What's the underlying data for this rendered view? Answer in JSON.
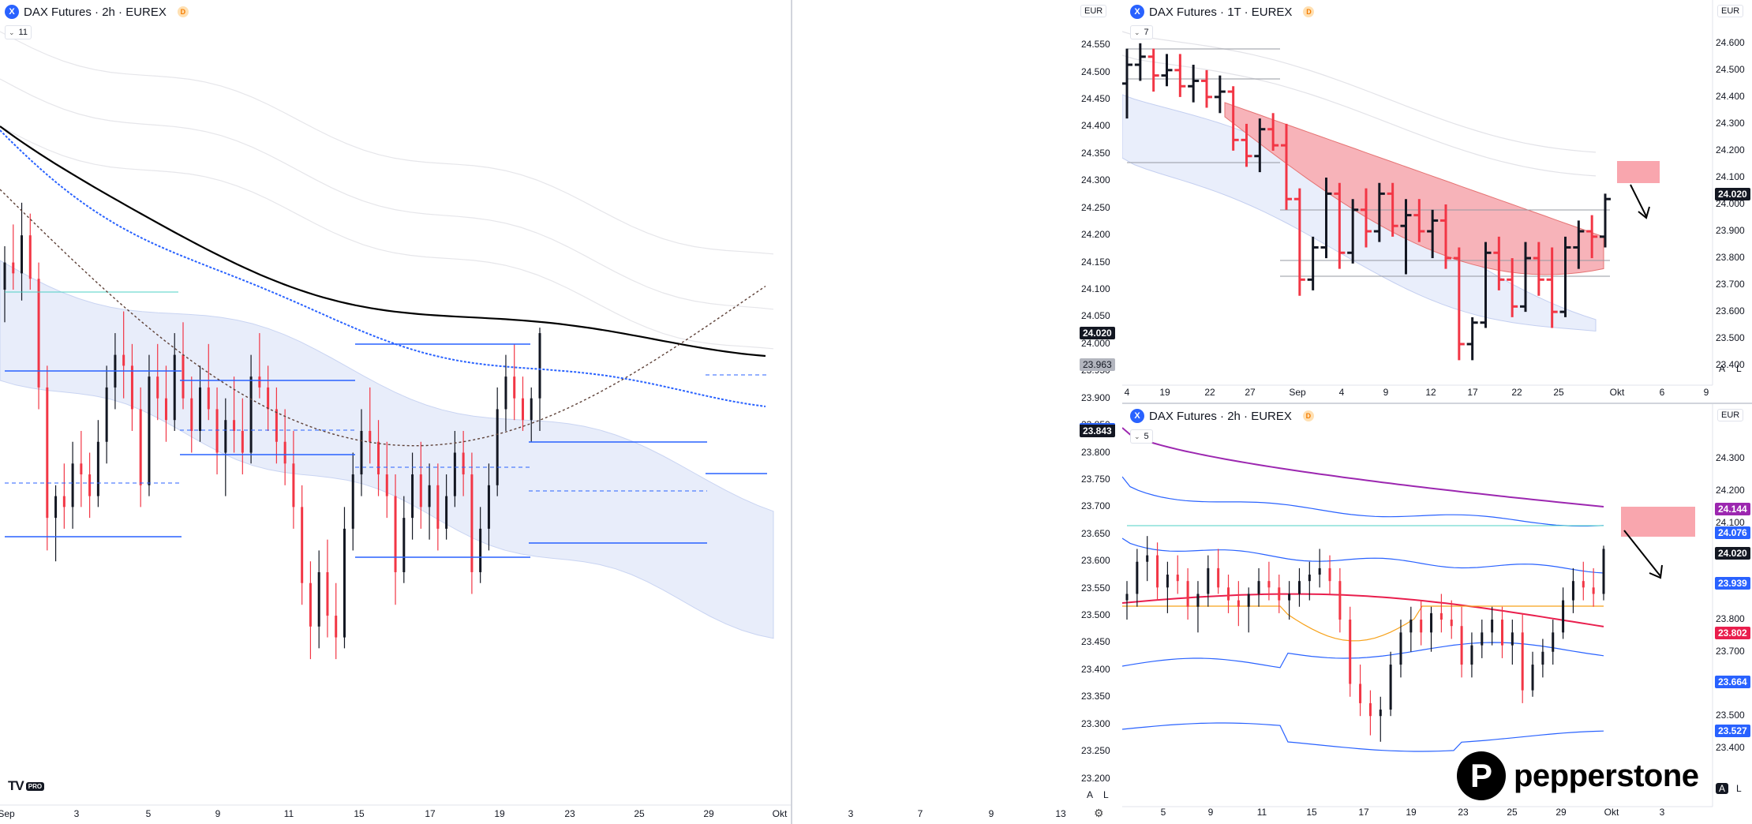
{
  "panels": {
    "left": {
      "title": "DAX Futures · 2h · EUREX",
      "badge": "D",
      "indicator_count": "11",
      "currency": "EUR",
      "last_price": "24.020",
      "tag_2": "23.963",
      "tag_3": "23.843",
      "al_a": "A",
      "al_l": "L"
    },
    "topright": {
      "title": "DAX Futures · 1T · EUREX",
      "badge": "D",
      "indicator_count": "7",
      "currency": "EUR",
      "last_price": "24.020",
      "al_a": "A",
      "al_l": "L"
    },
    "bottomright": {
      "title": "DAX Futures · 2h · EUREX",
      "badge": "D",
      "indicator_count": "5",
      "currency": "EUR",
      "last_price": "24.020",
      "tags": [
        "24.144",
        "24.076",
        "23.939",
        "23.802",
        "23.664",
        "23.527"
      ],
      "al_a": "A",
      "al_l": "L"
    }
  },
  "branding": {
    "tv": "TV",
    "tv_pro": "PRO",
    "pepperstone": "pepperstone",
    "pep_mark": "P"
  },
  "colors": {
    "up": "#131722",
    "down": "#f23645",
    "blue": "#2962ff",
    "dotted_blue": "#2962ff",
    "cloud": "#e8edfa",
    "red_band": "#f7b3b9",
    "pink_box": "#f9a6ae",
    "orange_box": "#fde2bd",
    "purple": "#9c27b0",
    "teal": "#4dd0c4",
    "orange_line": "#f7a21b",
    "crimson": "#e91e4d"
  },
  "chart_data": [
    {
      "id": "left",
      "type": "candlestick",
      "title": "DAX Futures · 2h · EUREX",
      "y_ticks": [
        "24.550",
        "24.500",
        "24.450",
        "24.400",
        "24.350",
        "24.300",
        "24.250",
        "24.200",
        "24.150",
        "24.100",
        "24.050",
        "24.000",
        "23.950",
        "23.900",
        "23.850",
        "23.800",
        "23.750",
        "23.700",
        "23.650",
        "23.600",
        "23.550",
        "23.500",
        "23.450",
        "23.400",
        "23.350",
        "23.300",
        "23.250",
        "23.200"
      ],
      "ylim": [
        23.195,
        24.575
      ],
      "x_ticks": [
        "Sep",
        "3",
        "5",
        "9",
        "11",
        "15",
        "17",
        "19",
        "23",
        "25",
        "29",
        "Okt",
        "3",
        "7",
        "9",
        "13"
      ],
      "last_price": 24.02,
      "ohlc": [
        [
          24.1,
          24.18,
          24.04,
          24.15
        ],
        [
          24.15,
          24.22,
          24.1,
          24.13
        ],
        [
          24.13,
          24.26,
          24.08,
          24.2
        ],
        [
          24.2,
          24.24,
          24.1,
          24.12
        ],
        [
          24.12,
          24.15,
          23.88,
          23.92
        ],
        [
          23.92,
          23.96,
          23.62,
          23.68
        ],
        [
          23.68,
          23.74,
          23.6,
          23.72
        ],
        [
          23.72,
          23.78,
          23.66,
          23.7
        ],
        [
          23.7,
          23.82,
          23.66,
          23.78
        ],
        [
          23.78,
          23.84,
          23.7,
          23.76
        ],
        [
          23.76,
          23.8,
          23.68,
          23.72
        ],
        [
          23.72,
          23.86,
          23.7,
          23.82
        ],
        [
          23.82,
          23.96,
          23.78,
          23.92
        ],
        [
          23.92,
          24.02,
          23.88,
          23.98
        ],
        [
          23.98,
          24.06,
          23.9,
          23.96
        ],
        [
          23.96,
          24.0,
          23.84,
          23.88
        ],
        [
          23.88,
          23.92,
          23.7,
          23.74
        ],
        [
          23.74,
          23.98,
          23.72,
          23.94
        ],
        [
          23.94,
          24.0,
          23.86,
          23.9
        ],
        [
          23.9,
          23.96,
          23.82,
          23.86
        ],
        [
          23.86,
          24.02,
          23.84,
          23.98
        ],
        [
          23.98,
          24.04,
          23.88,
          23.9
        ],
        [
          23.9,
          23.94,
          23.8,
          23.84
        ],
        [
          23.84,
          23.96,
          23.82,
          23.92
        ],
        [
          23.92,
          24.0,
          23.86,
          23.88
        ],
        [
          23.88,
          23.92,
          23.76,
          23.8
        ],
        [
          23.8,
          23.9,
          23.72,
          23.86
        ],
        [
          23.86,
          23.94,
          23.8,
          23.84
        ],
        [
          23.84,
          23.9,
          23.76,
          23.8
        ],
        [
          23.8,
          23.98,
          23.78,
          23.94
        ],
        [
          23.94,
          24.02,
          23.9,
          23.92
        ],
        [
          23.92,
          23.96,
          23.84,
          23.88
        ],
        [
          23.88,
          23.92,
          23.78,
          23.82
        ],
        [
          23.82,
          23.88,
          23.74,
          23.78
        ],
        [
          23.78,
          23.84,
          23.66,
          23.7
        ],
        [
          23.7,
          23.74,
          23.52,
          23.56
        ],
        [
          23.56,
          23.6,
          23.42,
          23.48
        ],
        [
          23.48,
          23.62,
          23.44,
          23.58
        ],
        [
          23.58,
          23.64,
          23.46,
          23.5
        ],
        [
          23.5,
          23.56,
          23.42,
          23.46
        ],
        [
          23.46,
          23.7,
          23.44,
          23.66
        ],
        [
          23.66,
          23.8,
          23.62,
          23.76
        ],
        [
          23.76,
          23.88,
          23.72,
          23.84
        ],
        [
          23.84,
          23.92,
          23.78,
          23.82
        ],
        [
          23.82,
          23.86,
          23.72,
          23.76
        ],
        [
          23.76,
          23.82,
          23.68,
          23.72
        ],
        [
          23.72,
          23.76,
          23.52,
          23.58
        ],
        [
          23.58,
          23.72,
          23.56,
          23.68
        ],
        [
          23.68,
          23.8,
          23.64,
          23.76
        ],
        [
          23.76,
          23.82,
          23.66,
          23.7
        ],
        [
          23.7,
          23.78,
          23.64,
          23.74
        ],
        [
          23.74,
          23.78,
          23.62,
          23.66
        ],
        [
          23.66,
          23.76,
          23.64,
          23.72
        ],
        [
          23.72,
          23.84,
          23.7,
          23.8
        ],
        [
          23.8,
          23.84,
          23.72,
          23.76
        ],
        [
          23.76,
          23.8,
          23.54,
          23.58
        ],
        [
          23.58,
          23.7,
          23.56,
          23.66
        ],
        [
          23.66,
          23.78,
          23.62,
          23.74
        ],
        [
          23.74,
          23.92,
          23.72,
          23.88
        ],
        [
          23.88,
          23.98,
          23.84,
          23.94
        ],
        [
          23.94,
          24.0,
          23.86,
          23.9
        ],
        [
          23.9,
          23.94,
          23.84,
          23.86
        ],
        [
          23.86,
          23.92,
          23.82,
          23.9
        ],
        [
          23.9,
          24.03,
          23.84,
          24.02
        ]
      ],
      "bands_note": "deviation channels, cloud and moving averages drawn as overlays",
      "zones": [
        {
          "type": "resistance",
          "y_top": 24.15,
          "y_bottom": 24.07
        },
        {
          "type": "support",
          "y_top": 23.57,
          "y_bottom": 23.46
        }
      ]
    },
    {
      "id": "topright",
      "type": "ohlc",
      "title": "DAX Futures · 1T · EUREX",
      "y_ticks": [
        "24.600",
        "24.500",
        "24.400",
        "24.300",
        "24.200",
        "24.100",
        "24.000",
        "23.900",
        "23.800",
        "23.700",
        "23.600",
        "23.500",
        "23.400"
      ],
      "ylim": [
        23.38,
        24.62
      ],
      "x_ticks": [
        "4",
        "19",
        "22",
        "27",
        "Sep",
        "4",
        "9",
        "12",
        "17",
        "22",
        "25",
        "Okt",
        "6",
        "9"
      ],
      "last_price": 24.02,
      "ohlc": [
        [
          24.45,
          24.58,
          24.32,
          24.52
        ],
        [
          24.52,
          24.6,
          24.46,
          24.55
        ],
        [
          24.55,
          24.58,
          24.42,
          24.48
        ],
        [
          24.48,
          24.56,
          24.44,
          24.5
        ],
        [
          24.5,
          24.56,
          24.4,
          24.44
        ],
        [
          24.44,
          24.52,
          24.38,
          24.46
        ],
        [
          24.46,
          24.5,
          24.36,
          24.4
        ],
        [
          24.4,
          24.48,
          24.34,
          24.42
        ],
        [
          24.42,
          24.44,
          24.2,
          24.24
        ],
        [
          24.24,
          24.3,
          24.14,
          24.18
        ],
        [
          24.18,
          24.32,
          24.12,
          24.28
        ],
        [
          24.28,
          24.34,
          24.2,
          24.22
        ],
        [
          24.22,
          24.3,
          23.98,
          24.02
        ],
        [
          24.02,
          24.06,
          23.66,
          23.72
        ],
        [
          23.72,
          23.88,
          23.68,
          23.84
        ],
        [
          23.84,
          24.1,
          23.8,
          24.04
        ],
        [
          24.04,
          24.08,
          23.76,
          23.82
        ],
        [
          23.82,
          24.02,
          23.78,
          23.98
        ],
        [
          23.98,
          24.06,
          23.84,
          23.9
        ],
        [
          23.9,
          24.08,
          23.86,
          24.04
        ],
        [
          24.04,
          24.08,
          23.88,
          23.92
        ],
        [
          23.92,
          24.02,
          23.74,
          23.96
        ],
        [
          23.96,
          24.02,
          23.86,
          23.9
        ],
        [
          23.9,
          23.98,
          23.8,
          23.94
        ],
        [
          23.94,
          24.0,
          23.76,
          23.8
        ],
        [
          23.8,
          23.84,
          23.42,
          23.48
        ],
        [
          23.48,
          23.58,
          23.42,
          23.56
        ],
        [
          23.56,
          23.86,
          23.54,
          23.82
        ],
        [
          23.82,
          23.88,
          23.68,
          23.72
        ],
        [
          23.72,
          23.8,
          23.58,
          23.62
        ],
        [
          23.62,
          23.86,
          23.6,
          23.8
        ],
        [
          23.8,
          23.86,
          23.66,
          23.72
        ],
        [
          23.72,
          23.84,
          23.54,
          23.6
        ],
        [
          23.6,
          23.88,
          23.58,
          23.84
        ],
        [
          23.84,
          23.94,
          23.76,
          23.9
        ],
        [
          23.9,
          23.96,
          23.8,
          23.88
        ],
        [
          23.88,
          24.04,
          23.84,
          24.02
        ]
      ]
    },
    {
      "id": "bottomright",
      "type": "candlestick",
      "title": "DAX Futures · 2h · EUREX",
      "y_ticks": [
        "24.300",
        "24.200",
        "24.100",
        "24.000",
        "23.900",
        "23.800",
        "23.700",
        "23.600",
        "23.500",
        "23.400"
      ],
      "ylim": [
        23.39,
        24.36
      ],
      "x_ticks": [
        "5",
        "9",
        "11",
        "15",
        "17",
        "19",
        "23",
        "25",
        "29",
        "Okt",
        "3"
      ],
      "last_price": 24.02,
      "ohlc": [
        [
          23.86,
          23.92,
          23.8,
          23.88
        ],
        [
          23.88,
          24.02,
          23.84,
          23.98
        ],
        [
          23.98,
          24.06,
          23.92,
          24.0
        ],
        [
          24.0,
          24.04,
          23.86,
          23.9
        ],
        [
          23.9,
          23.98,
          23.82,
          23.94
        ],
        [
          23.94,
          24.0,
          23.88,
          23.92
        ],
        [
          23.92,
          23.96,
          23.8,
          23.84
        ],
        [
          23.84,
          23.92,
          23.76,
          23.88
        ],
        [
          23.88,
          24.0,
          23.84,
          23.96
        ],
        [
          23.96,
          24.02,
          23.88,
          23.9
        ],
        [
          23.9,
          23.94,
          23.82,
          23.86
        ],
        [
          23.86,
          23.92,
          23.78,
          23.84
        ],
        [
          23.84,
          23.9,
          23.76,
          23.88
        ],
        [
          23.88,
          23.96,
          23.84,
          23.92
        ],
        [
          23.92,
          23.98,
          23.86,
          23.9
        ],
        [
          23.9,
          23.94,
          23.82,
          23.86
        ],
        [
          23.86,
          23.92,
          23.8,
          23.88
        ],
        [
          23.88,
          23.96,
          23.84,
          23.92
        ],
        [
          23.92,
          23.98,
          23.86,
          23.94
        ],
        [
          23.94,
          24.02,
          23.9,
          23.96
        ],
        [
          23.96,
          24.0,
          23.88,
          23.92
        ],
        [
          23.92,
          23.96,
          23.76,
          23.8
        ],
        [
          23.8,
          23.84,
          23.56,
          23.6
        ],
        [
          23.6,
          23.66,
          23.5,
          23.54
        ],
        [
          23.54,
          23.58,
          23.44,
          23.5
        ],
        [
          23.5,
          23.56,
          23.42,
          23.52
        ],
        [
          23.52,
          23.7,
          23.5,
          23.66
        ],
        [
          23.66,
          23.8,
          23.62,
          23.76
        ],
        [
          23.76,
          23.84,
          23.7,
          23.8
        ],
        [
          23.8,
          23.86,
          23.72,
          23.76
        ],
        [
          23.76,
          23.84,
          23.7,
          23.82
        ],
        [
          23.82,
          23.88,
          23.76,
          23.8
        ],
        [
          23.8,
          23.86,
          23.74,
          23.78
        ],
        [
          23.78,
          23.84,
          23.62,
          23.66
        ],
        [
          23.66,
          23.76,
          23.62,
          23.72
        ],
        [
          23.72,
          23.8,
          23.68,
          23.76
        ],
        [
          23.76,
          23.84,
          23.72,
          23.8
        ],
        [
          23.8,
          23.84,
          23.68,
          23.72
        ],
        [
          23.72,
          23.8,
          23.66,
          23.76
        ],
        [
          23.76,
          23.82,
          23.54,
          23.58
        ],
        [
          23.58,
          23.7,
          23.56,
          23.66
        ],
        [
          23.66,
          23.74,
          23.62,
          23.7
        ],
        [
          23.7,
          23.8,
          23.66,
          23.76
        ],
        [
          23.76,
          23.9,
          23.74,
          23.86
        ],
        [
          23.86,
          23.96,
          23.82,
          23.92
        ],
        [
          23.92,
          23.98,
          23.86,
          23.9
        ],
        [
          23.9,
          23.96,
          23.84,
          23.88
        ],
        [
          23.88,
          24.03,
          23.86,
          24.02
        ]
      ]
    }
  ]
}
